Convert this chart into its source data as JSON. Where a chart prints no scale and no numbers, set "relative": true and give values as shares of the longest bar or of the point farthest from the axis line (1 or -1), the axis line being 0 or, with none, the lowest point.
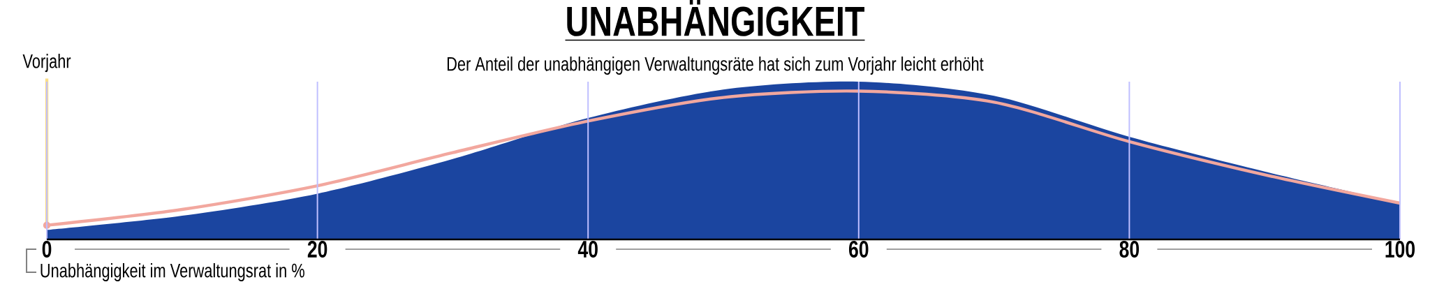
{
  "chart_data": {
    "type": "area",
    "title": "UNABHÄNGIGKEIT",
    "subtitle": "Der Anteil der unabhängigen Verwaltungsräte hat sich zum Vorjahr leicht erhöht",
    "xlabel": "Unabhängigkeit im Verwaltungsrat in %",
    "relative": true,
    "x": [
      0,
      10,
      20,
      30,
      40,
      50,
      60,
      70,
      80,
      90,
      100
    ],
    "xlim": [
      0,
      100
    ],
    "xticks": [
      0,
      20,
      40,
      60,
      80,
      100
    ],
    "grid": "x",
    "series": [
      {
        "color": "#1b45a0",
        "values": [
          0.06,
          0.15,
          0.29,
          0.51,
          0.77,
          0.95,
          1,
          0.91,
          0.65,
          0.43,
          0.23
        ]
      },
      {
        "type": "line",
        "name": "Vorjahr",
        "color": "#f2a79e",
        "values": [
          0.09,
          0.19,
          0.34,
          0.55,
          0.75,
          0.9,
          0.94,
          0.87,
          0.62,
          0.41,
          0.23
        ]
      }
    ]
  }
}
